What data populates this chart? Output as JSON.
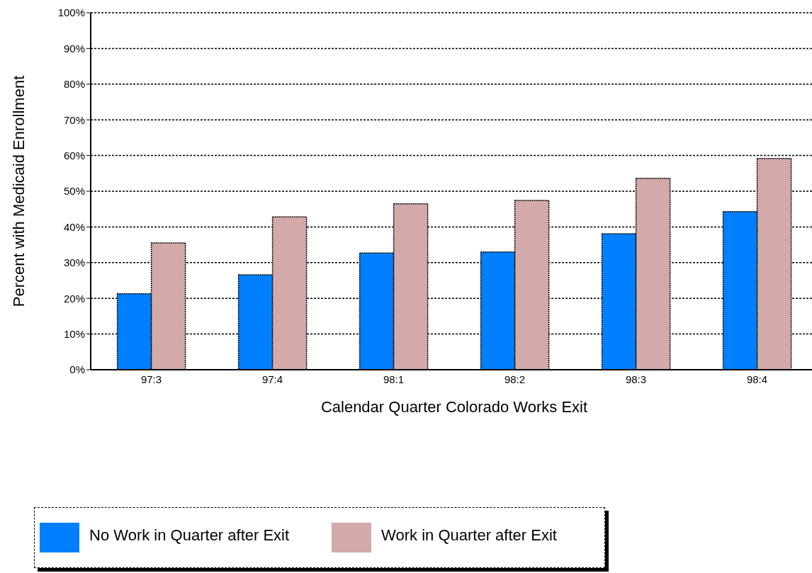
{
  "chart_data": {
    "type": "bar",
    "xlabel": "Calendar Quarter Colorado Works Exit",
    "ylabel": "Percent with Medicaid Enrollment",
    "categories": [
      "97:3",
      "97:4",
      "98:1",
      "98:2",
      "98:3",
      "98:4"
    ],
    "series": [
      {
        "name": "No Work in Quarter after Exit",
        "color": "#0080ff",
        "values": [
          21.3,
          26.6,
          32.7,
          33.0,
          38.1,
          44.3
        ]
      },
      {
        "name": "Work in Quarter after Exit",
        "color": "#d4a9aa",
        "values": [
          35.5,
          42.8,
          46.5,
          47.4,
          53.6,
          59.2
        ]
      }
    ],
    "ylim": [
      0,
      100
    ],
    "yticks": [
      {
        "value": 0,
        "label": "0%"
      },
      {
        "value": 10,
        "label": "10%"
      },
      {
        "value": 20,
        "label": "20%"
      },
      {
        "value": 30,
        "label": "30%"
      },
      {
        "value": 40,
        "label": "40%"
      },
      {
        "value": 50,
        "label": "50%"
      },
      {
        "value": 60,
        "label": "60%"
      },
      {
        "value": 70,
        "label": "70%"
      },
      {
        "value": 80,
        "label": "80%"
      },
      {
        "value": 90,
        "label": "90%"
      },
      {
        "value": 100,
        "label": "100%"
      }
    ],
    "grid": "y",
    "legend": "bottom"
  }
}
